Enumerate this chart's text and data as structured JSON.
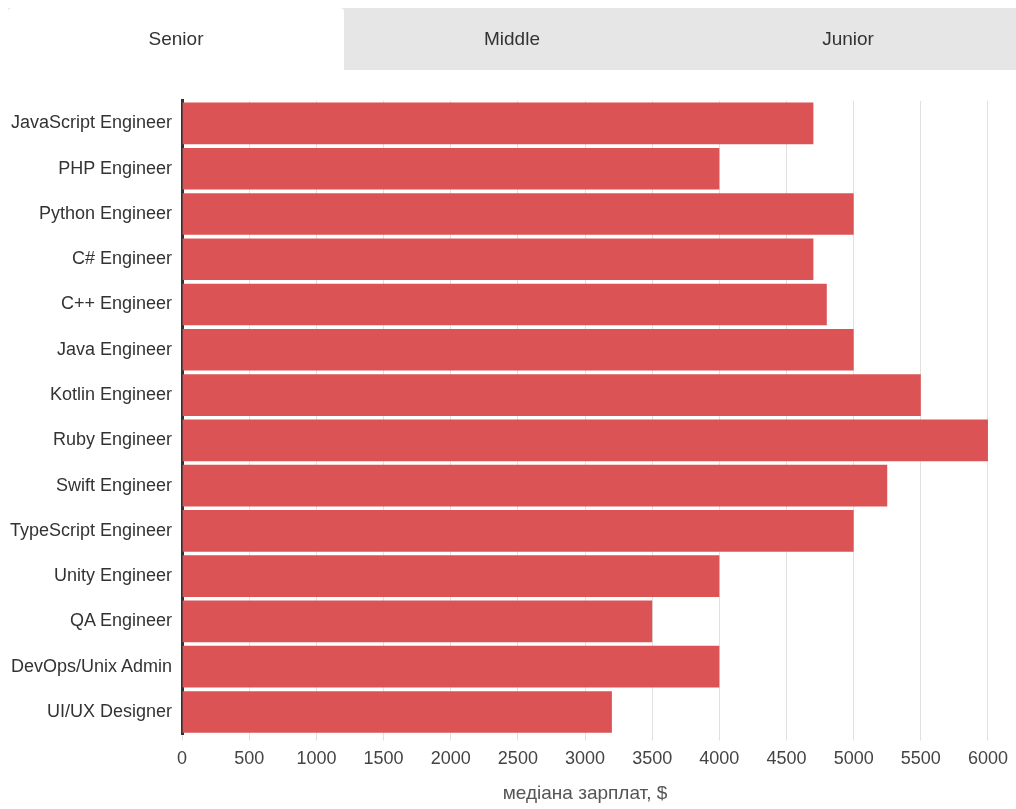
{
  "chart_data": {
    "type": "bar",
    "orientation": "horizontal",
    "annotations": [
      "Senior",
      "Middle",
      "Junior"
    ],
    "categories": [
      "JavaScript Engineer",
      "PHP Engineer",
      "Python Engineer",
      "C# Engineer",
      "C++ Engineer",
      "Java Engineer",
      "Kotlin Engineer",
      "Ruby Engineer",
      "Swift Engineer",
      "TypeScript Engineer",
      "Unity Engineer",
      "QA Engineer",
      "DevOps/Unix Admin",
      "UI/UX Designer"
    ],
    "values": [
      4700,
      4000,
      5000,
      4700,
      4800,
      5000,
      5500,
      6000,
      5250,
      5000,
      4000,
      3500,
      4000,
      3200
    ],
    "color": "#dc5355",
    "xlabel": "медіана зарплат, $",
    "xlim": [
      0,
      6000
    ],
    "xticks": [
      0,
      500,
      1000,
      1500,
      2000,
      2500,
      3000,
      3500,
      4000,
      4500,
      5000,
      5500,
      6000
    ],
    "grid": "x",
    "legend": false
  }
}
